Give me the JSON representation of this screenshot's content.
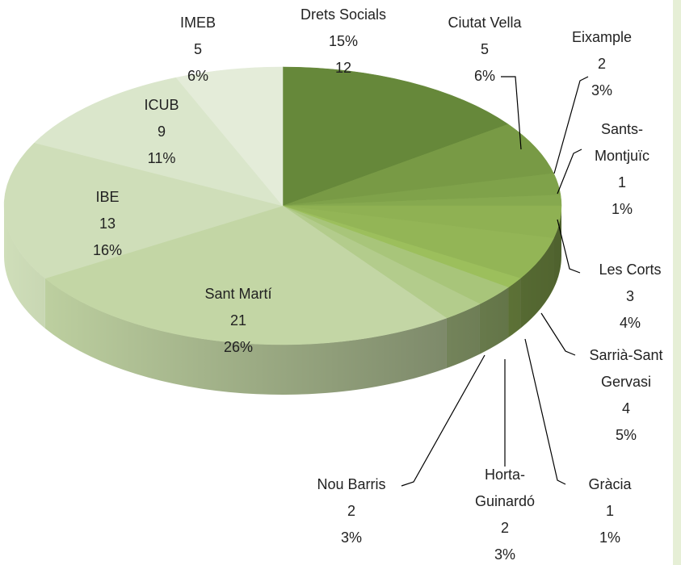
{
  "chart_data": {
    "type": "pie3d",
    "categories": [
      "Drets Socials",
      "Ciutat Vella",
      "Eixample",
      "Sants-Montjuïc",
      "Les Corts",
      "Sarrià-Sant Gervasi",
      "Gràcia",
      "Horta-Guinardó",
      "Nou Barris",
      "Sant Martí",
      "IBE",
      "ICUB",
      "IMEB"
    ],
    "values": [
      12,
      5,
      2,
      1,
      3,
      4,
      1,
      2,
      2,
      21,
      13,
      9,
      5
    ],
    "percent_labels": [
      "15%",
      "6%",
      "3%",
      "1%",
      "4%",
      "5%",
      "1%",
      "3%",
      "3%",
      "26%",
      "16%",
      "11%",
      "6%"
    ],
    "colors": [
      "#66883a",
      "#789a45",
      "#7fa24a",
      "#86a94f",
      "#8fb153",
      "#93b556",
      "#9cbf5c",
      "#a8c57a",
      "#b3cc8c",
      "#c3d6a5",
      "#cfdeb9",
      "#dae6cb",
      "#e4ecd9"
    ]
  }
}
